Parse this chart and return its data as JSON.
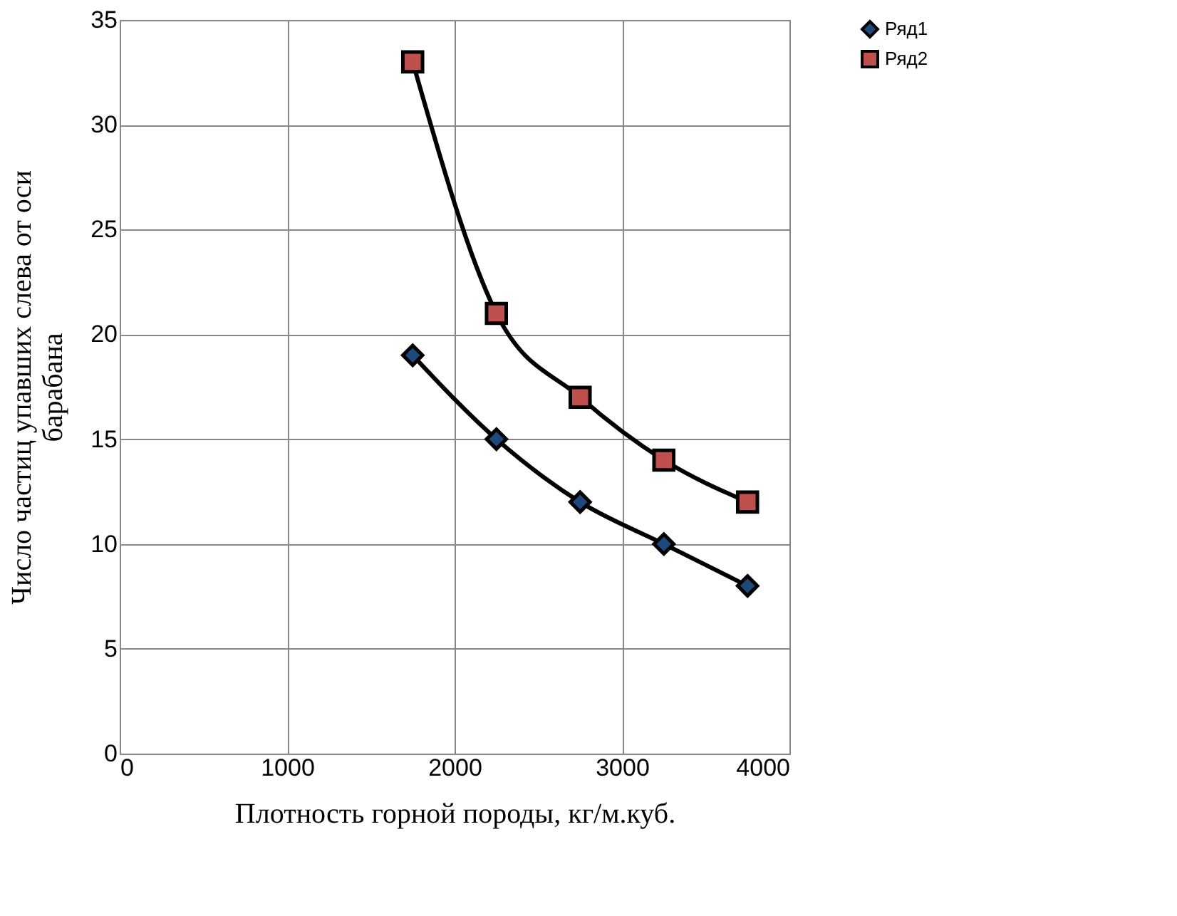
{
  "chart_data": {
    "type": "line",
    "xlabel": "Плотность  горной породы, кг/м.куб.",
    "ylabel": "Число частиц упавших  слева от оси\nбарабана",
    "x": [
      1750,
      2250,
      2750,
      3250,
      3750
    ],
    "series": [
      {
        "name": "Ряд1",
        "color": "#1f497d",
        "marker": "diamond",
        "values": [
          19,
          15,
          12,
          10,
          8
        ]
      },
      {
        "name": "Ряд2",
        "color": "#c0504d",
        "marker": "square",
        "values": [
          33,
          21,
          17,
          14,
          12
        ]
      }
    ],
    "xlim": [
      0,
      4000
    ],
    "xticks": [
      0,
      1000,
      2000,
      3000,
      4000
    ],
    "ylim": [
      0,
      35
    ],
    "yticks": [
      0,
      5,
      10,
      15,
      20,
      25,
      30,
      35
    ],
    "grid": true,
    "legend": "right",
    "line_style": "solid"
  }
}
